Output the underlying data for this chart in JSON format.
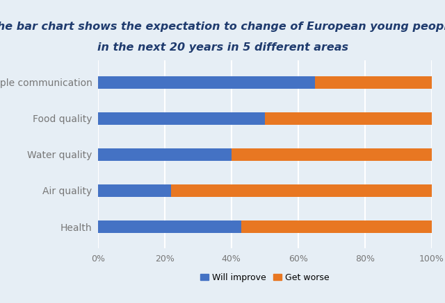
{
  "title_line1": "The bar chart shows the expectation to change of European young people",
  "title_line2": "in the next 20 years in 5 different areas",
  "categories": [
    "Health",
    "Air quality",
    "Water quality",
    "Food quality",
    "People communication"
  ],
  "will_improve": [
    43,
    22,
    40,
    50,
    65
  ],
  "get_worse": [
    57,
    78,
    60,
    50,
    35
  ],
  "color_improve": "#4472C4",
  "color_worse": "#E87722",
  "background_color": "#E6EEF5",
  "title_color": "#1F3B6E",
  "label_color": "#777777",
  "legend_improve": "Will improve",
  "legend_worse": "Get worse",
  "xlim": [
    0,
    100
  ],
  "xticks": [
    0,
    20,
    40,
    60,
    80,
    100
  ],
  "xticklabels": [
    "0%",
    "20%",
    "40%",
    "60%",
    "80%",
    "100%"
  ],
  "bar_height": 0.35,
  "title_fontsize": 11.5,
  "tick_fontsize": 9,
  "label_fontsize": 10
}
